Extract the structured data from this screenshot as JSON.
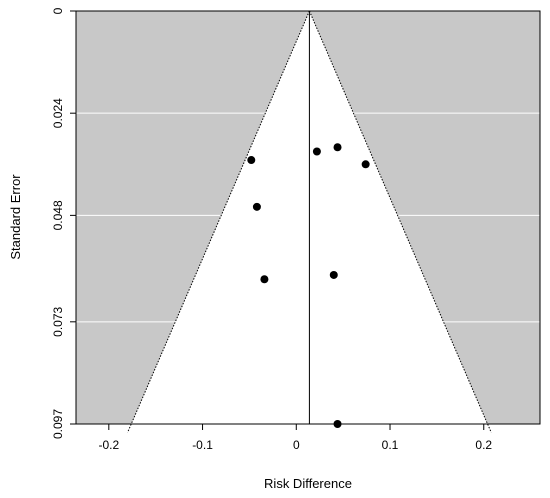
{
  "chart_data": {
    "type": "scatter",
    "subtype": "funnel-plot",
    "title": "",
    "xlabel": "Risk Difference",
    "ylabel": "Standard Error",
    "xlim": [
      -0.235,
      0.26
    ],
    "ylim": [
      0.097,
      0
    ],
    "y_axis_inverted": true,
    "x_ticks": [
      -0.2,
      -0.1,
      0,
      0.1,
      0.2
    ],
    "x_tick_labels": [
      "-0.2",
      "-0.1",
      "0",
      "0.1",
      "0.2"
    ],
    "y_ticks": [
      0,
      0.024,
      0.048,
      0.073,
      0.097
    ],
    "y_tick_labels": [
      "0",
      "0.024",
      "0.048",
      "0.073",
      "0.097"
    ],
    "center_line_x": 0.014,
    "funnel": {
      "apex": [
        0.014,
        0
      ],
      "left_base": [
        -0.18,
        0.099
      ],
      "right_base": [
        0.208,
        0.099
      ]
    },
    "points": [
      {
        "x": 0.044,
        "y": 0.032
      },
      {
        "x": 0.022,
        "y": 0.033
      },
      {
        "x": -0.048,
        "y": 0.035
      },
      {
        "x": 0.074,
        "y": 0.036
      },
      {
        "x": -0.042,
        "y": 0.046
      },
      {
        "x": -0.034,
        "y": 0.063
      },
      {
        "x": 0.04,
        "y": 0.062
      },
      {
        "x": 0.044,
        "y": 0.097
      }
    ],
    "grid": true,
    "colors": {
      "outside_region": "#c8c8c8",
      "funnel_region": "#ffffff",
      "gridline": "#ffffff",
      "point": "#000000",
      "line": "#000000"
    }
  }
}
